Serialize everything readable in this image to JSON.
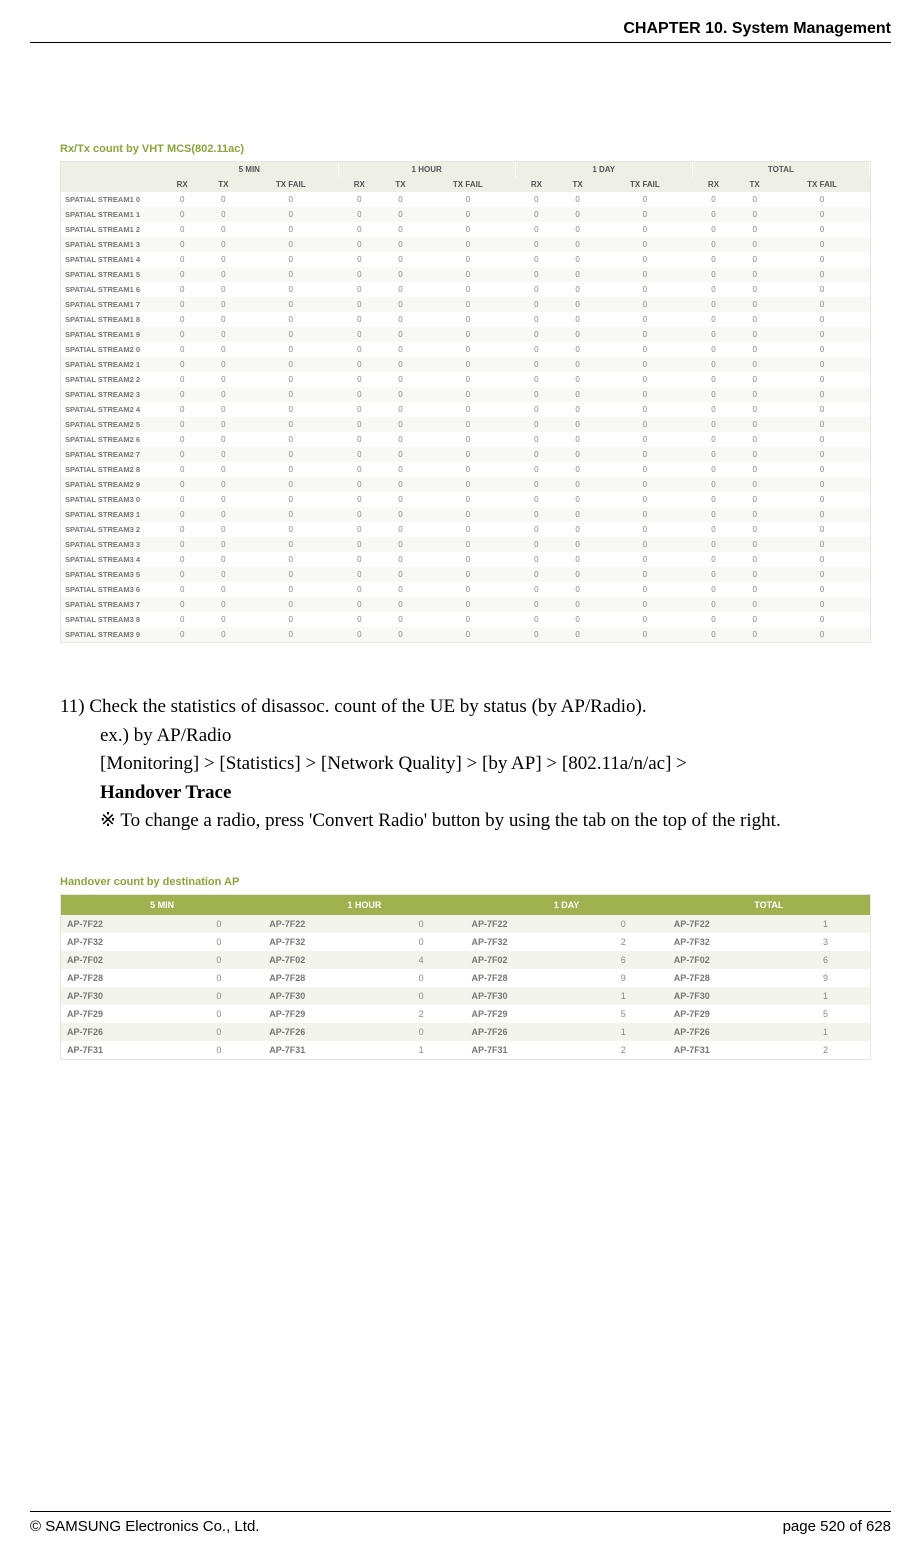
{
  "header": {
    "chapter": "CHAPTER 10. System Management"
  },
  "table1": {
    "title": "Rx/Tx count by VHT MCS(802.11ac)",
    "title_color": "#8aa63a",
    "groups": [
      "5 MIN",
      "1 HOUR",
      "1 DAY",
      "TOTAL"
    ],
    "subcols": [
      "RX",
      "TX",
      "TX FAIL"
    ],
    "header_bg": "#eef0e6",
    "row_alt_bg": "#f8f9f4",
    "rows": [
      "SPATIAL STREAM1 0",
      "SPATIAL STREAM1 1",
      "SPATIAL STREAM1 2",
      "SPATIAL STREAM1 3",
      "SPATIAL STREAM1 4",
      "SPATIAL STREAM1 5",
      "SPATIAL STREAM1 6",
      "SPATIAL STREAM1 7",
      "SPATIAL STREAM1 8",
      "SPATIAL STREAM1 9",
      "SPATIAL STREAM2 0",
      "SPATIAL STREAM2 1",
      "SPATIAL STREAM2 2",
      "SPATIAL STREAM2 3",
      "SPATIAL STREAM2 4",
      "SPATIAL STREAM2 5",
      "SPATIAL STREAM2 6",
      "SPATIAL STREAM2 7",
      "SPATIAL STREAM2 8",
      "SPATIAL STREAM2 9",
      "SPATIAL STREAM3 0",
      "SPATIAL STREAM3 1",
      "SPATIAL STREAM3 2",
      "SPATIAL STREAM3 3",
      "SPATIAL STREAM3 4",
      "SPATIAL STREAM3 5",
      "SPATIAL STREAM3 6",
      "SPATIAL STREAM3 7",
      "SPATIAL STREAM3 8",
      "SPATIAL STREAM3 9"
    ],
    "cell_value": "0"
  },
  "body": {
    "line1": "11) Check the statistics of disassoc. count of the UE by status (by AP/Radio).",
    "line2": "ex.) by AP/Radio",
    "line3_pre": "[Monitoring] > [Statistics] > [Network Quality] > [by AP] > [802.11a/n/ac] > ",
    "line3_bold": "Handover Trace",
    "line4": "※  To change a radio, press 'Convert Radio' button by using the tab on the top of the right."
  },
  "table2": {
    "title": "Handover count by destination AP",
    "title_color": "#8aa63a",
    "header_bg": "#9fb24f",
    "header_fg": "#ffffff",
    "row_alt_bg": "#f3f5ec",
    "columns": [
      "5 MIN",
      "1 HOUR",
      "1 DAY",
      "TOTAL"
    ],
    "aps": [
      "AP-7F22",
      "AP-7F32",
      "AP-7F02",
      "AP-7F28",
      "AP-7F30",
      "AP-7F29",
      "AP-7F26",
      "AP-7F31"
    ],
    "values": {
      "5 MIN": [
        0,
        0,
        0,
        0,
        0,
        0,
        0,
        0
      ],
      "1 HOUR": [
        0,
        0,
        4,
        0,
        0,
        2,
        0,
        1
      ],
      "1 DAY": [
        0,
        2,
        6,
        9,
        1,
        5,
        1,
        2
      ],
      "TOTAL": [
        1,
        3,
        6,
        9,
        1,
        5,
        1,
        2
      ]
    }
  },
  "footer": {
    "left": "© SAMSUNG Electronics Co., Ltd.",
    "right": "page 520 of 628"
  }
}
